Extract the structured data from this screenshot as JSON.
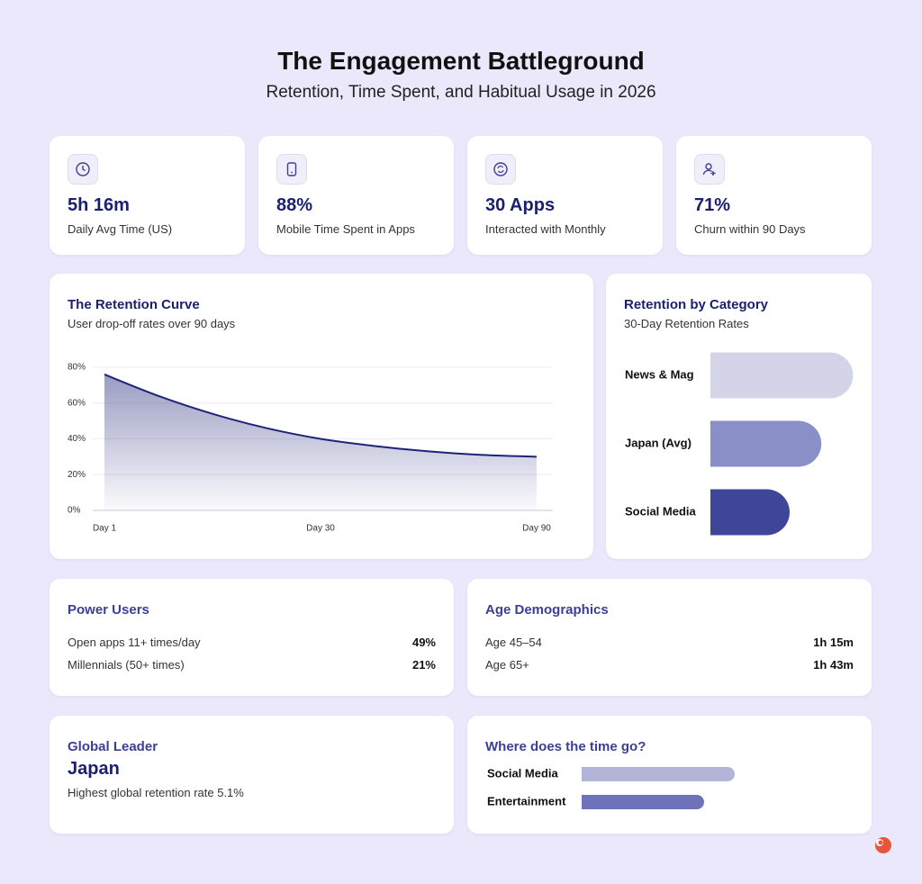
{
  "header": {
    "title": "The Engagement Battleground",
    "subtitle": "Retention, Time Spent, and Habitual Usage in 2026"
  },
  "stats": [
    {
      "value": "5h 16m",
      "label": "Daily Avg Time (US)"
    },
    {
      "value": "88%",
      "label": "Mobile Time Spent in Apps"
    },
    {
      "value": "30 Apps",
      "label": "Interacted with Monthly"
    },
    {
      "value": "71%",
      "label": "Churn within 90 Days"
    }
  ],
  "retention_curve": {
    "type": "line",
    "title": "The Retention Curve",
    "subtitle": "User drop-off rates over 90 days",
    "categories": [
      "Day 1",
      null,
      null,
      null,
      "Day 30",
      null,
      null,
      null,
      "Day 90"
    ],
    "values": [
      76,
      64,
      54,
      46,
      40,
      36,
      33,
      31,
      30
    ],
    "color": "#1e2378",
    "ylim": [
      0,
      80
    ],
    "yticks": [
      {
        "value": 0,
        "label": "0%"
      },
      {
        "value": 20,
        "label": "20%"
      },
      {
        "value": 40,
        "label": "40%"
      },
      {
        "value": 60,
        "label": "60%"
      },
      {
        "value": 80,
        "label": "80%"
      }
    ],
    "grid": true
  },
  "retention_by_category": {
    "type": "bar",
    "title": "Retention by Category",
    "subtitle": "30-Day Retention Rates",
    "categories": [
      "News & Mag",
      "Japan (Avg)",
      "Social Media"
    ],
    "values": [
      36,
      28,
      20
    ],
    "colors": [
      "#d3d4e8",
      "#8a8fc7",
      "#3f4599"
    ]
  },
  "power_users": {
    "title": "Power Users",
    "rows": [
      [
        "Open apps 11+ times/day",
        "49%"
      ],
      [
        "Millennials (50+ times)",
        "21%"
      ]
    ]
  },
  "age_demographics": {
    "title": "Age Demographics",
    "rows": [
      [
        "Age 45–54",
        "1h 15m"
      ],
      [
        "Age 65+",
        "1h 43m"
      ]
    ]
  },
  "global_leader": {
    "title": "Global Leader",
    "value": "Japan",
    "note": "Highest global retention rate 5.1%"
  },
  "time_split": {
    "type": "bar",
    "title": "Where does the time go?",
    "categories": [
      "Social Media",
      "Entertainment"
    ],
    "values": [
      50,
      40
    ],
    "colors": [
      "#b3b5d8",
      "#6e72b8"
    ]
  }
}
